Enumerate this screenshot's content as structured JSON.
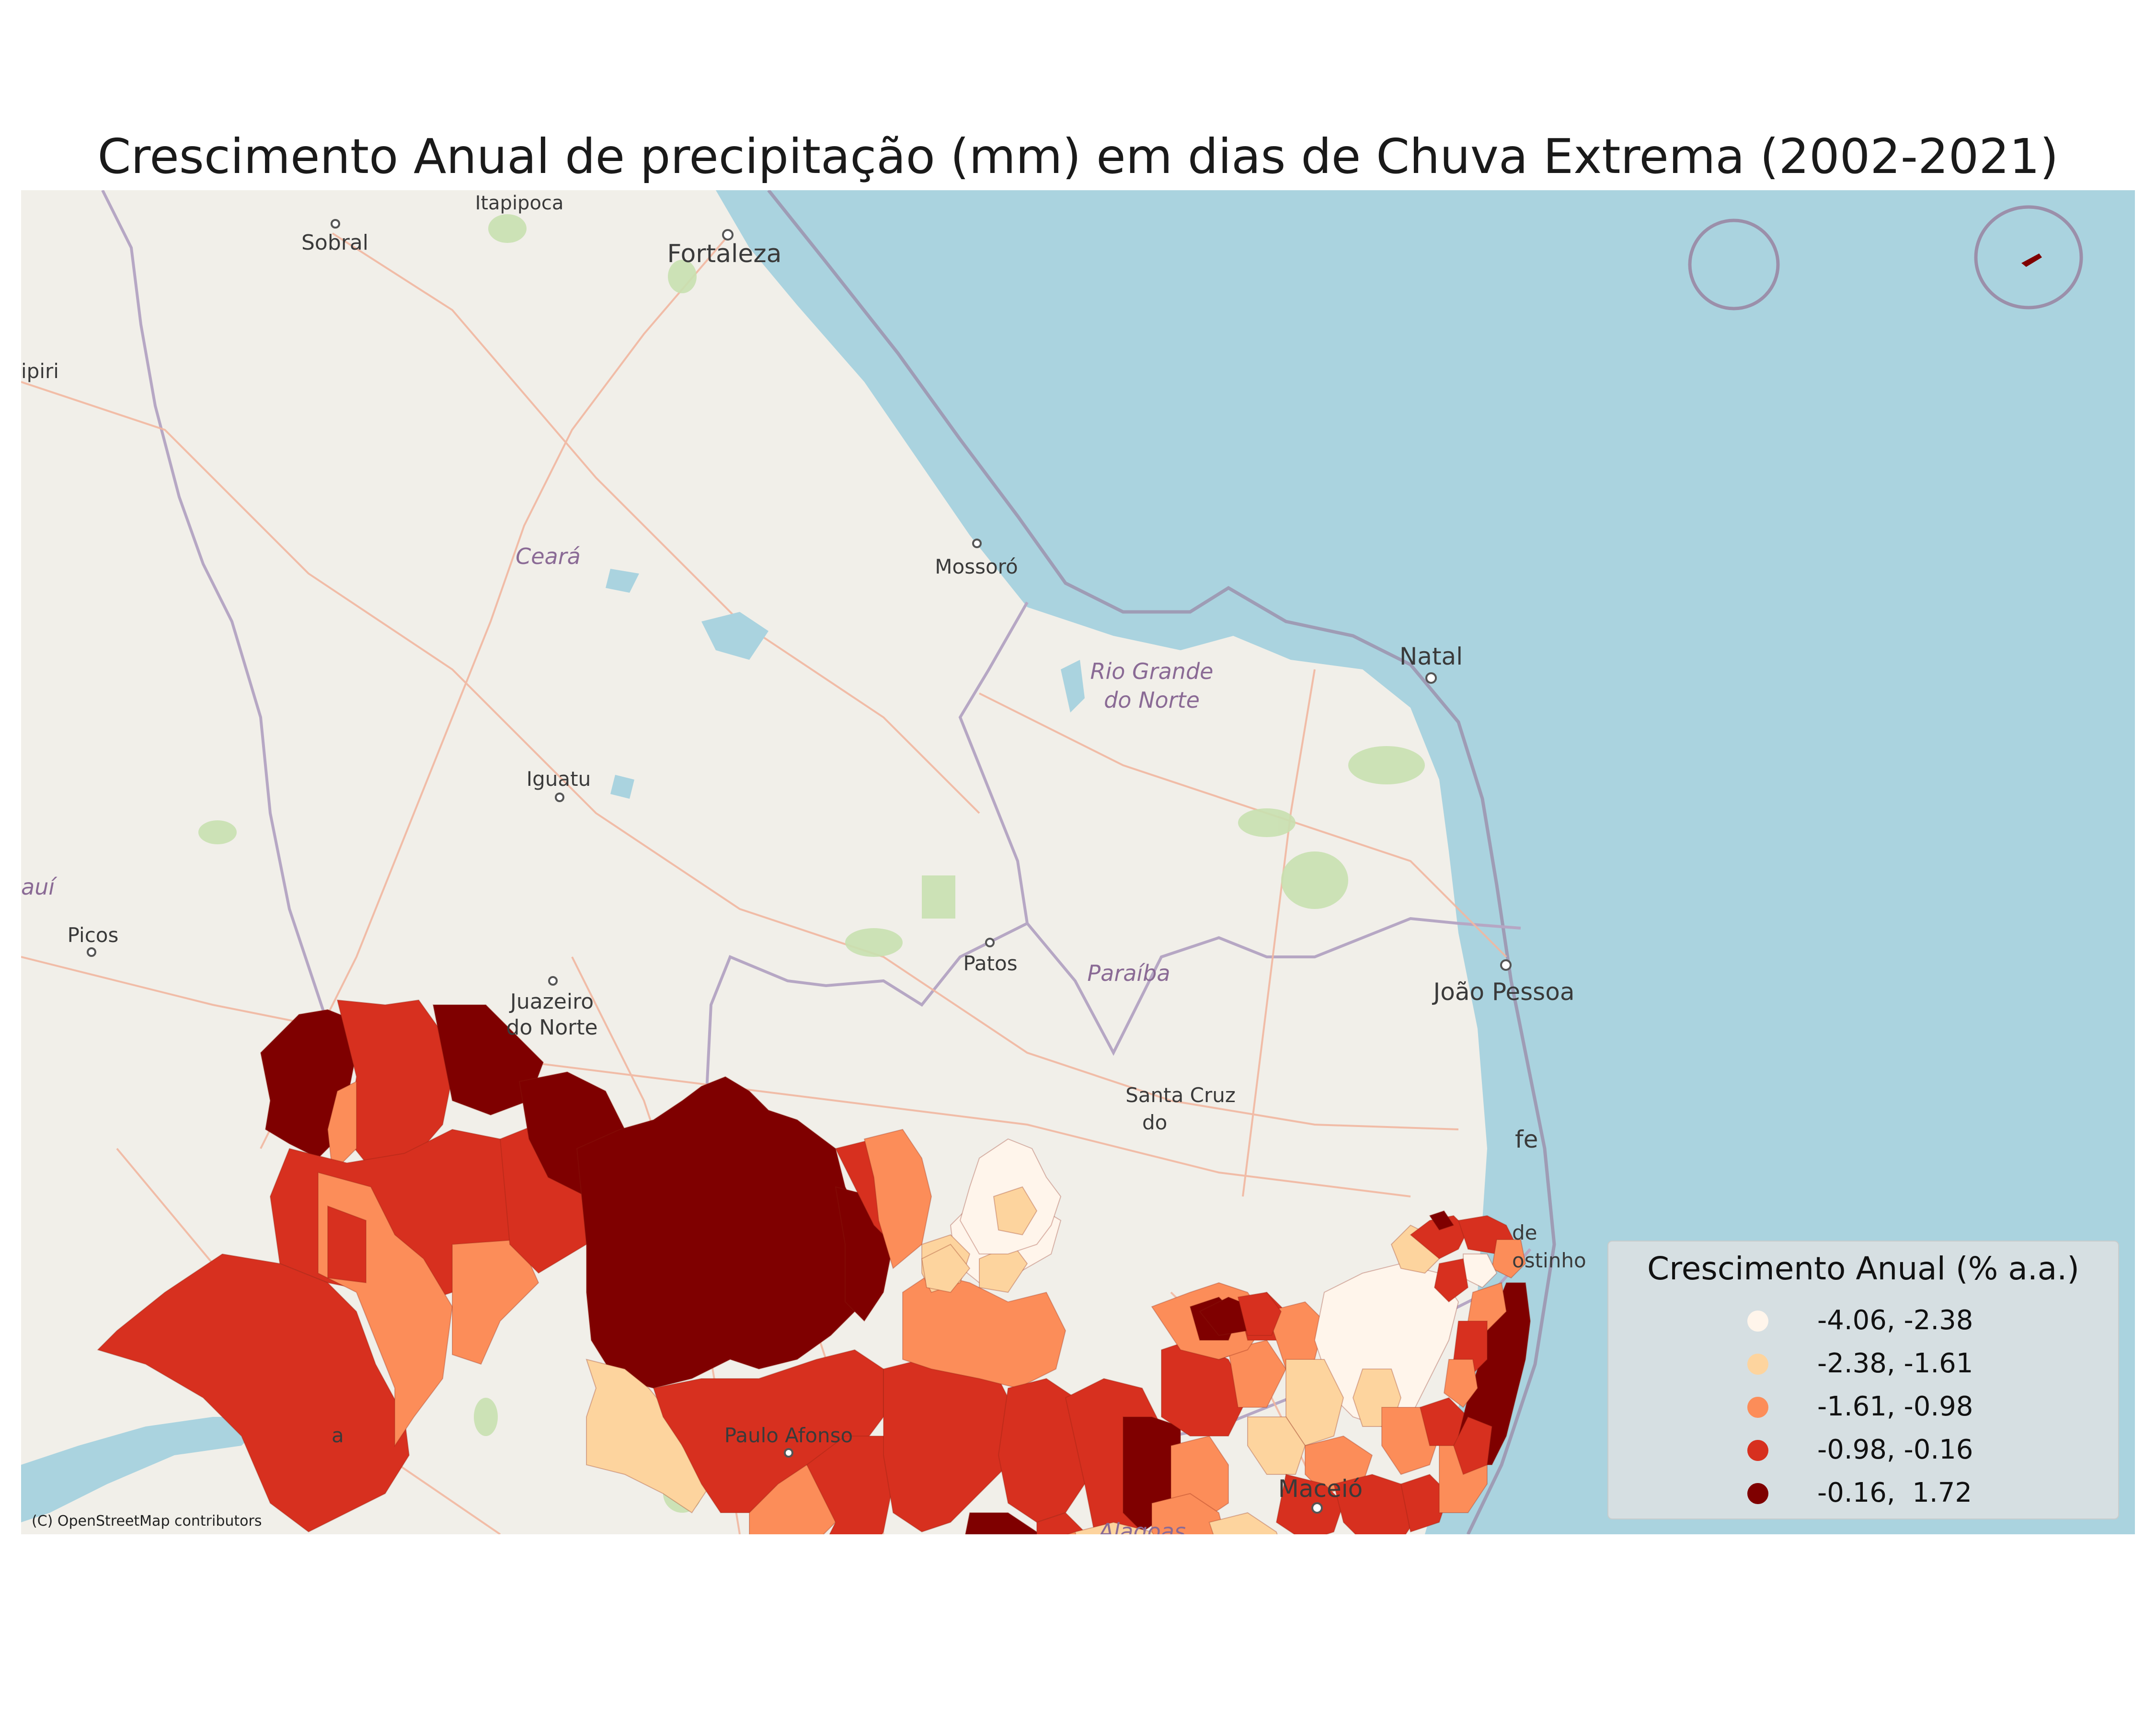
{
  "title": "Crescimento Anual de precipitação (mm) em dias de Chuva Extrema (2002-2021)",
  "attribution": "(C) OpenStreetMap contributors",
  "colors": {
    "land": "#f1efe9",
    "ocean": "#aad3df",
    "road": "#f2b7a0",
    "border": "#b6a7c4",
    "park": "#c8e0b0"
  },
  "map_labels": {
    "cities": [
      "Itapipoca",
      "Sobral",
      "Fortaleza",
      "ipiri",
      "Mossoró",
      "Natal",
      "Iguatu",
      "Picos",
      "Patos",
      "Juazeiro",
      "do Norte",
      "João Pessoa",
      "Santa Cruz",
      "do",
      "fe",
      "de",
      "ostinho",
      "Paulo Afonso",
      "a",
      "Maceió"
    ],
    "states": [
      "Ceará",
      "Rio Grande",
      "do Norte",
      "Paraíba",
      "auí",
      "Alagoas"
    ]
  },
  "legend": {
    "title": "Crescimento Anual (% a.a.)",
    "items": [
      {
        "label": "-4.06, -2.38",
        "color": "#fff5eb"
      },
      {
        "label": "-2.38, -1.61",
        "color": "#fdd49e"
      },
      {
        "label": "-1.61, -0.98",
        "color": "#fc8d59"
      },
      {
        "label": "-0.98, -0.16",
        "color": "#d7301f"
      },
      {
        "label": "-0.16,  1.72",
        "color": "#7f0000"
      }
    ]
  }
}
